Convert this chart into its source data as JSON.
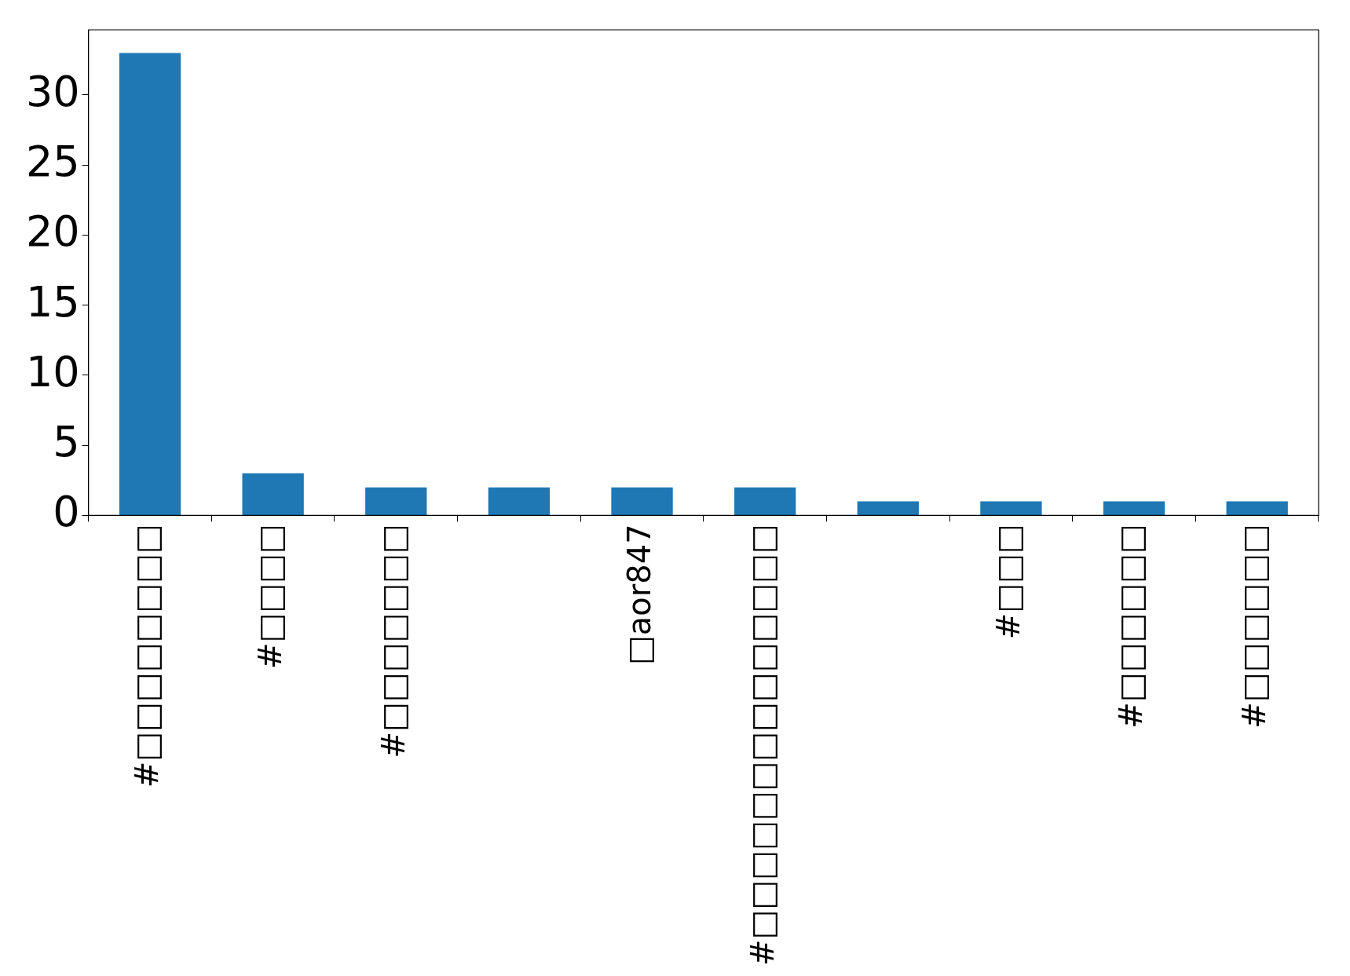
{
  "chart_data": {
    "type": "bar",
    "categories": [
      "#□□□□□□□□",
      "#□□□□",
      "#□□□□□□□",
      null,
      "□aor847",
      "#□□□□□□□□□□□□□□",
      null,
      "#□□□",
      "#□□□□□□",
      "#□□□□□□"
    ],
    "values": [
      33,
      3,
      2,
      2,
      2,
      2,
      1,
      1,
      1,
      1
    ],
    "color": "#1f77b4",
    "ylim": [
      0,
      34.65
    ],
    "yticks": [
      0,
      5,
      10,
      15,
      20,
      25,
      30
    ]
  }
}
